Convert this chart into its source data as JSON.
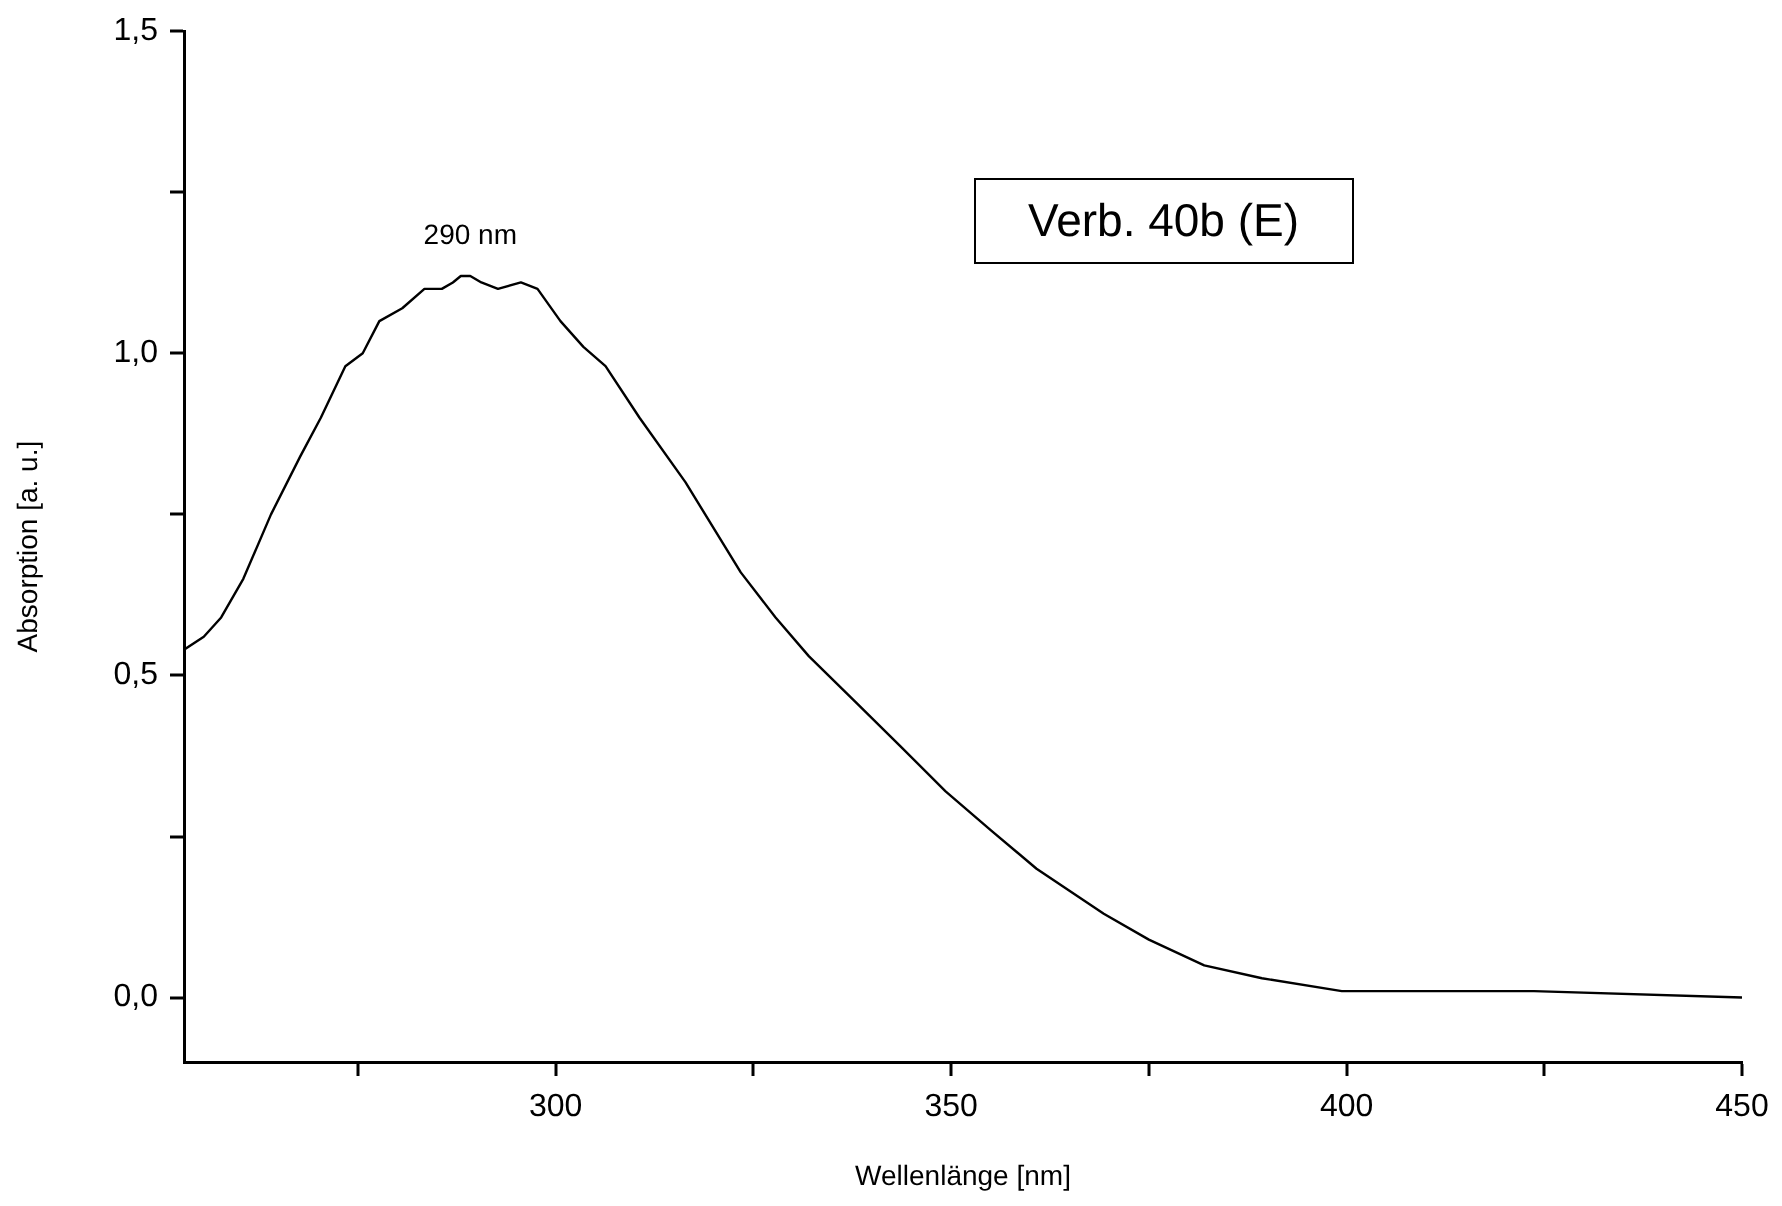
{
  "chart_data": {
    "type": "line",
    "xlabel": "Wellenlänge [nm]",
    "ylabel": "Absorption [a. u.]",
    "x": [
      253,
      255.5,
      257.7,
      260.5,
      264,
      267.7,
      270.3,
      273.4,
      275.6,
      277.7,
      280.6,
      283.4,
      285.6,
      287,
      288,
      289.2,
      290.6,
      292.7,
      295.6,
      297.7,
      300.6,
      303.5,
      306.3,
      310.6,
      316.4,
      323.4,
      327.8,
      332,
      337.8,
      343.6,
      349.3,
      355,
      360.8,
      369.3,
      375,
      382,
      389.3,
      399.4,
      409.3,
      423.7,
      450
    ],
    "series": [
      {
        "color": "#000000",
        "values": [
          0.54,
          0.56,
          0.59,
          0.65,
          0.75,
          0.84,
          0.9,
          0.98,
          1.0,
          1.05,
          1.07,
          1.1,
          1.1,
          1.11,
          1.12,
          1.12,
          1.11,
          1.1,
          1.11,
          1.1,
          1.05,
          1.01,
          0.98,
          0.9,
          0.8,
          0.66,
          0.59,
          0.53,
          0.46,
          0.39,
          0.32,
          0.26,
          0.2,
          0.13,
          0.09,
          0.05,
          0.03,
          0.01,
          0.01,
          0.01,
          0.0
        ]
      }
    ],
    "xlim": [
      253,
      450
    ],
    "xticks": [
      300,
      350,
      400,
      450,
      {
        "value": 275,
        "label": null
      },
      {
        "value": 325,
        "label": null
      },
      {
        "value": 375,
        "label": null
      },
      {
        "value": 425,
        "label": null
      }
    ],
    "ylim": [
      -0.1,
      1.5
    ],
    "yticks": [
      {
        "value": 0,
        "label": "0,0"
      },
      {
        "value": 0.5,
        "label": "0,5"
      },
      {
        "value": 1,
        "label": "1,0"
      },
      {
        "value": 1.5,
        "label": "1,5"
      },
      {
        "value": 0.25,
        "label": null
      },
      {
        "value": 0.75,
        "label": null
      },
      {
        "value": 1.25,
        "label": null
      }
    ],
    "annotations": [
      {
        "text": "290 nm",
        "x": 289.2,
        "y": 1.12
      },
      "Verb. 40b (E)"
    ],
    "grid": false,
    "legend": false,
    "marker": "none",
    "line_style": "solid"
  }
}
